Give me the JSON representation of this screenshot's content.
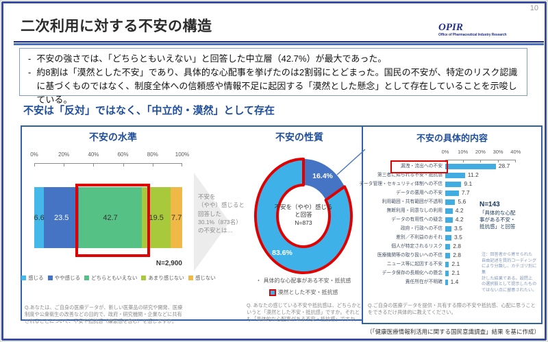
{
  "page": {
    "number": "10",
    "title": "二次利用に対する不安の構造",
    "logo_text": "OPIR",
    "logo_subtext": "Office of Pharmaceutical Industry Research",
    "attribution": "（「健康医療情報利活用に関する国民意識調査」結果 を基に作成）"
  },
  "summary": {
    "bullets": [
      "不安の強さでは、「どちらともいえない」と回答した中立層（42.7%）が最大であった。",
      "約8割は「漠然とした不安」であり、具体的な心配事を挙げたのは2割弱にとどまった。国民の不安が、特定のリスク認識に基づくものではなく、制度全体への信頼感や情報不足に起因する「漠然とした懸念」として存在していることを示唆している。"
    ]
  },
  "section_heading": "不安は「反対」ではなく、「中立的・漠然」として存在",
  "transition_note": "不安を\n（やや）感じると\n回答した\n30.1%（873名）\nの不安とは…",
  "chart_data": [
    {
      "id": "anxiety-level",
      "type": "bar",
      "subtype": "stacked-horizontal-100pct",
      "title": "不安の水準",
      "axis_ticks": [
        "0%",
        "20%",
        "40%",
        "60%",
        "80%",
        "100%"
      ],
      "categories": [
        "感じる",
        "やや感じる",
        "どちらともいえない",
        "あまり感じない",
        "感じない"
      ],
      "values": [
        6.6,
        23.5,
        42.7,
        19.5,
        7.7
      ],
      "colors": [
        "#44b8e8",
        "#4574c4",
        "#55c185",
        "#a9c93c",
        "#f0b846"
      ],
      "highlight_index": 2,
      "highlight_color": "#e00000",
      "n_label": "N=2,900",
      "question": "Q.あなたは、ご自身の医療データが、新しい医薬品の研究や開発、医療制度や公衆衛生の改善などの目的で、政府・研究機関・企業などに共有されることについて、不安や抵抗感（嫌悪感を含む）を感じますか。"
    },
    {
      "id": "anxiety-nature",
      "type": "pie",
      "subtype": "donut",
      "title": "不安の性質",
      "slices": [
        {
          "label": "具体的な心配事がある不安・抵抗感",
          "value": 16.4,
          "color": "#4574c4",
          "highlighted": false
        },
        {
          "label": "漠然とした不安・抵抗感",
          "value": 83.6,
          "color": "#3eb2e8",
          "highlighted": true
        }
      ],
      "center_label": "不安を（やや）感じる\nと回答\nN=873",
      "highlight_color": "#e00000",
      "question": "Q. あなたの感じている不安や抵抗感は、どちらかというと「漠然とした不安・抵抗感」ですか。それとも「具体的な心配事がある不安・抵抗感」ですか。"
    },
    {
      "id": "anxiety-specifics",
      "type": "bar",
      "subtype": "horizontal",
      "title": "不安の具体的内容",
      "axis_ticks": [
        "0%",
        "10%",
        "20%",
        "30%",
        "40%"
      ],
      "categories": [
        "漏洩・流出への不安",
        "第三者に知られる不安・抵抗感",
        "データ管理・セキュリティ体制への不信",
        "データの悪用への不安",
        "利用範囲・共有範囲が不透明",
        "無断利用・同意なしの利用",
        "データの有用性への疑念",
        "政府・行政への不信",
        "差別／不利益のおそれ",
        "個人が特定されるリスク",
        "医療機関等の取り扱いへの不信",
        "ニュース等に起因する不安",
        "データ保存の長期化への懸念",
        "責任所在が不明確"
      ],
      "values": [
        28.7,
        11.2,
        9.1,
        7.7,
        5.6,
        4.2,
        4.2,
        3.5,
        3.5,
        2.8,
        2.8,
        2.1,
        2.1,
        1.4
      ],
      "bar_color": "#41ace0",
      "highlight_index": 0,
      "highlight_color": "#e00000",
      "n_label": "N=143",
      "n_sublabel": "「具体的な心配\n事がある不安・\n抵抗感」と回答",
      "note": "注：回答者から寄せられた\n自由記述を質的コーディング\nにより分類し、カテゴリ別に集\n計した結果である。設問上\nの選択肢として提示したもの\nではない点に留意されたい。",
      "question": "Q.ご自身の医療データを提供・共有する際の不安や抵抗感、心配に思うことをできるだけ具体的に教えてください。"
    }
  ]
}
